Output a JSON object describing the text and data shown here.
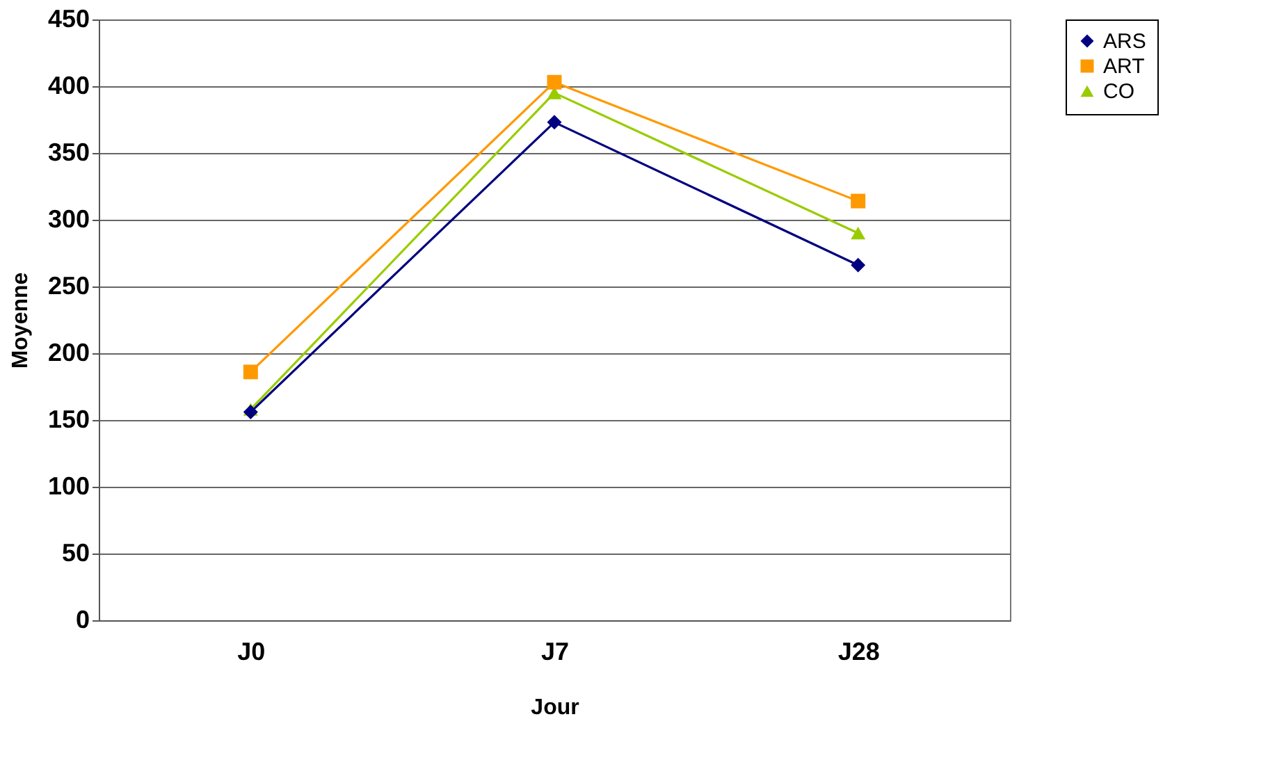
{
  "chart_data": {
    "type": "line",
    "xlabel": "Jour",
    "ylabel": "Moyenne",
    "categories": [
      "J0",
      "J7",
      "J28"
    ],
    "series": [
      {
        "name": "ARS",
        "color": "#000080",
        "marker": "diamond",
        "values": [
          156,
          373,
          266
        ]
      },
      {
        "name": "ART",
        "color": "#ff9900",
        "marker": "square",
        "values": [
          186,
          403,
          314
        ]
      },
      {
        "name": "CO",
        "color": "#99cc00",
        "marker": "triangle",
        "values": [
          158,
          395,
          290
        ]
      }
    ],
    "ylim": [
      0,
      450
    ],
    "yticks": [
      0,
      50,
      100,
      150,
      200,
      250,
      300,
      350,
      400,
      450
    ],
    "grid": "y",
    "legend": "right",
    "line_style": "solid"
  }
}
